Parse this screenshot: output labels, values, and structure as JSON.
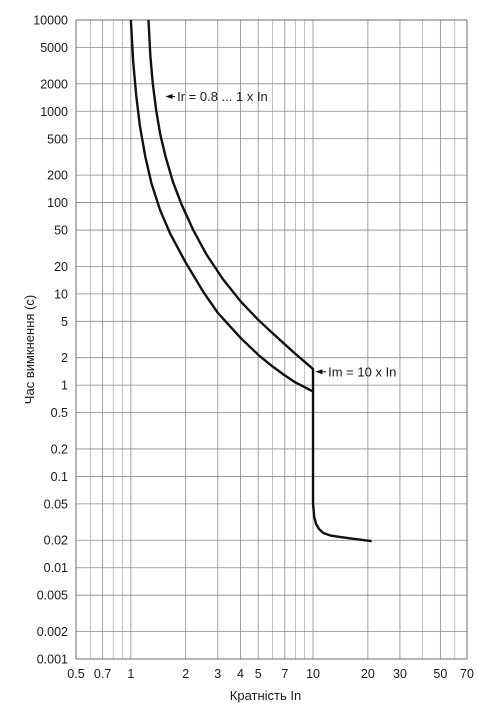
{
  "chart_data": {
    "type": "line",
    "xscale": "log",
    "yscale": "log",
    "xlim": [
      0.5,
      70
    ],
    "ylim": [
      0.001,
      10000
    ],
    "xlabel": "Кратність In",
    "ylabel": "Час вимкнення (с)",
    "grid": true,
    "x_ticks": [
      {
        "v": 0.5,
        "label": "0.5"
      },
      {
        "v": 0.7,
        "label": "0.7"
      },
      {
        "v": 1,
        "label": "1"
      },
      {
        "v": 2,
        "label": "2"
      },
      {
        "v": 3,
        "label": "3"
      },
      {
        "v": 4,
        "label": "4"
      },
      {
        "v": 5,
        "label": "5"
      },
      {
        "v": 7,
        "label": "7"
      },
      {
        "v": 10,
        "label": "10"
      },
      {
        "v": 20,
        "label": "20"
      },
      {
        "v": 30,
        "label": "30"
      },
      {
        "v": 50,
        "label": "50"
      },
      {
        "v": 70,
        "label": "70"
      }
    ],
    "x_minor": [
      0.6,
      0.8,
      0.9,
      6,
      8,
      9,
      40,
      60
    ],
    "y_ticks": [
      {
        "v": 10000,
        "label": "10000"
      },
      {
        "v": 5000,
        "label": "5000"
      },
      {
        "v": 2000,
        "label": "2000"
      },
      {
        "v": 1000,
        "label": "1000"
      },
      {
        "v": 500,
        "label": "500"
      },
      {
        "v": 200,
        "label": "200"
      },
      {
        "v": 100,
        "label": "100"
      },
      {
        "v": 50,
        "label": "50"
      },
      {
        "v": 20,
        "label": "20"
      },
      {
        "v": 10,
        "label": "10"
      },
      {
        "v": 5,
        "label": "5"
      },
      {
        "v": 2,
        "label": "2"
      },
      {
        "v": 1,
        "label": "1"
      },
      {
        "v": 0.5,
        "label": "0.5"
      },
      {
        "v": 0.2,
        "label": "0.2"
      },
      {
        "v": 0.1,
        "label": "0.1"
      },
      {
        "v": 0.05,
        "label": "0.05"
      },
      {
        "v": 0.02,
        "label": "0.02"
      },
      {
        "v": 0.01,
        "label": "0.01"
      },
      {
        "v": 0.005,
        "label": "0.005"
      },
      {
        "v": 0.002,
        "label": "0.002"
      },
      {
        "v": 0.001,
        "label": "0.001"
      }
    ],
    "series": [
      {
        "x": [
          1.0,
          1.03,
          1.07,
          1.12,
          1.2,
          1.3,
          1.45,
          1.65,
          2.0,
          2.5,
          3.0,
          4.0,
          5.0,
          6.0,
          7.0,
          8.0,
          9.0,
          10.0,
          10.0,
          10.0,
          10.0,
          10.15,
          10.4,
          10.8,
          11.4,
          12.5,
          14.5,
          17.5,
          21.0
        ],
        "y": [
          10000,
          3500,
          1500,
          700,
          320,
          160,
          82,
          45,
          22,
          10.5,
          6.2,
          3.3,
          2.15,
          1.6,
          1.28,
          1.07,
          0.95,
          0.85,
          0.3,
          0.1,
          0.05,
          0.036,
          0.03,
          0.0265,
          0.024,
          0.0225,
          0.0215,
          0.0205,
          0.0195
        ]
      },
      {
        "x": [
          1.25,
          1.28,
          1.32,
          1.38,
          1.45,
          1.55,
          1.7,
          1.9,
          2.2,
          2.6,
          3.2,
          4.0,
          5.0,
          6.0,
          7.0,
          8.0,
          9.0,
          10.0,
          10.0
        ],
        "y": [
          10000,
          4000,
          2000,
          1000,
          560,
          320,
          170,
          95,
          50,
          27,
          14.5,
          8.3,
          5.2,
          3.7,
          2.8,
          2.2,
          1.8,
          1.5,
          0.85
        ]
      }
    ],
    "annotations": [
      {
        "text": "Ir = 0.8 ... 1 x In",
        "x_from": 1.75,
        "x_to": 1.55,
        "y": 1450
      },
      {
        "text": "Im = 10 x In",
        "x_from": 11.8,
        "x_to": 10.3,
        "y": 1.4
      }
    ]
  }
}
